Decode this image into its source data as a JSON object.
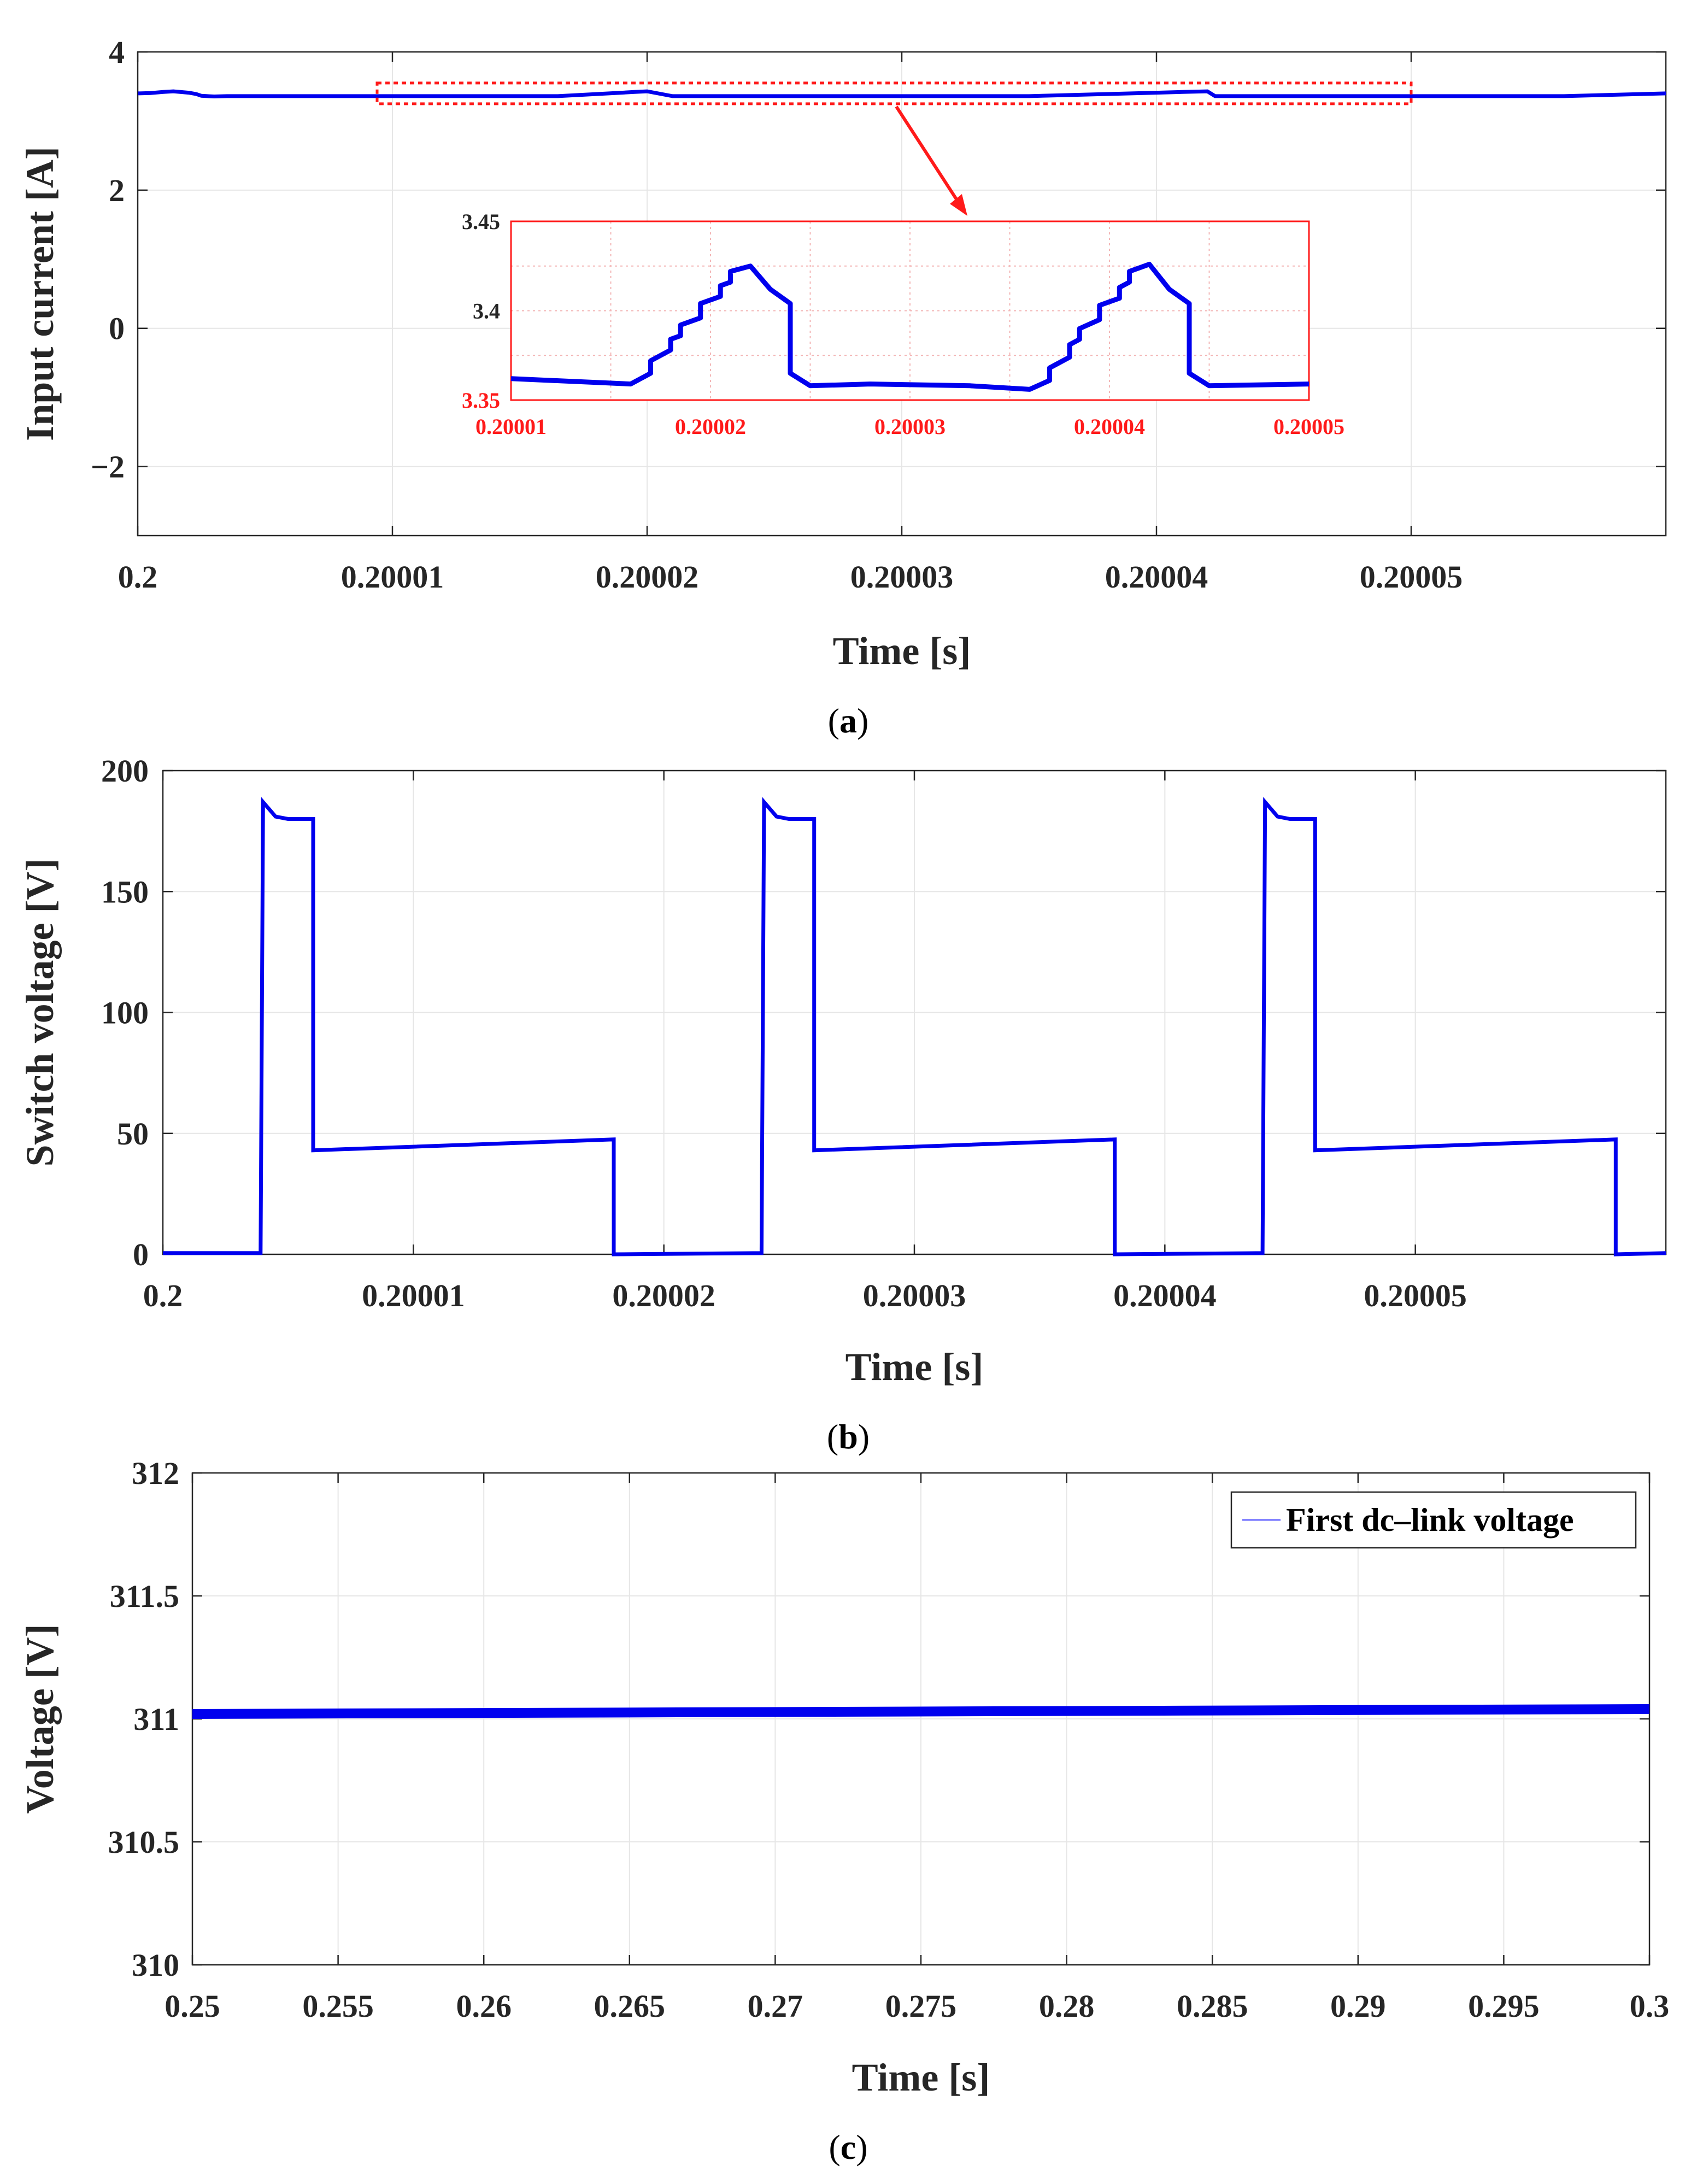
{
  "colors": {
    "series": "#0000ee",
    "grid": "#e6e6e6",
    "axis": "#262626",
    "inset": "#ff1a1a"
  },
  "chart_data": [
    {
      "id": "a",
      "type": "line",
      "caption_letter": "a",
      "xlabel": "Time [s]",
      "ylabel": "Input current [A]",
      "xlim": [
        0.2,
        0.20006
      ],
      "ylim": [
        -3,
        4
      ],
      "x_ticks": [
        0.2,
        0.20001,
        0.20002,
        0.20003,
        0.20004,
        0.20005
      ],
      "x_tick_labels": [
        "0.2",
        "0.20001",
        "0.20002",
        "0.20003",
        "0.20004",
        "0.20005"
      ],
      "y_ticks": [
        -2,
        0,
        2,
        4
      ],
      "y_tick_labels": [
        "−2",
        "0",
        "2",
        "4"
      ],
      "grid": true,
      "series": [
        {
          "name": "Input current",
          "x": [
            0.2,
            0.2000005,
            0.200001,
            0.2000014,
            0.200002,
            0.2000023,
            0.2000025,
            0.200003,
            0.2000035,
            0.200004,
            0.2000045,
            0.200005,
            0.2000055,
            0.200006,
            0.2000065,
            0.200007,
            0.2000075,
            0.200008,
            0.2000085,
            0.200009,
            0.2000095,
            0.20001,
            0.2000105,
            0.200011,
            0.2000115,
            0.200012,
            0.2000125,
            0.200013,
            0.2000135,
            0.200014,
            0.2000145,
            0.200015,
            0.2000155,
            0.200016,
            0.2000165,
            0.200017,
            0.2000175,
            0.200018,
            0.2000185,
            0.200019,
            0.2000195,
            0.20002,
            0.200021,
            0.200022,
            0.2000223,
            0.200023,
            0.200024,
            0.200025,
            0.200026,
            0.200027,
            0.200028,
            0.200029,
            0.20003,
            0.200031,
            0.200032,
            0.200033,
            0.200034,
            0.200035,
            0.200036,
            0.200037,
            0.200038,
            0.200039,
            0.20004,
            0.200041,
            0.200042,
            0.2000423,
            0.200043,
            0.200044,
            0.200045,
            0.200046,
            0.200047,
            0.200048,
            0.200049,
            0.20005,
            0.200051,
            0.200052,
            0.200053,
            0.200054,
            0.200055,
            0.200056,
            0.200057,
            0.200058,
            0.200059,
            0.20006
          ],
          "y": [
            3.4,
            3.405,
            3.42,
            3.43,
            3.41,
            3.39,
            3.365,
            3.355,
            3.36,
            3.36,
            3.36,
            3.36,
            3.36,
            3.36,
            3.36,
            3.36,
            3.36,
            3.36,
            3.36,
            3.36,
            3.36,
            3.36,
            3.36,
            3.36,
            3.36,
            3.36,
            3.36,
            3.36,
            3.36,
            3.36,
            3.36,
            3.36,
            3.36,
            3.36,
            3.36,
            3.37,
            3.38,
            3.39,
            3.4,
            3.41,
            3.42,
            3.43,
            3.36,
            3.36,
            3.36,
            3.36,
            3.36,
            3.36,
            3.36,
            3.36,
            3.36,
            3.36,
            3.36,
            3.36,
            3.36,
            3.36,
            3.36,
            3.36,
            3.37,
            3.38,
            3.39,
            3.4,
            3.41,
            3.42,
            3.43,
            3.36,
            3.36,
            3.36,
            3.36,
            3.36,
            3.36,
            3.36,
            3.36,
            3.36,
            3.36,
            3.36,
            3.36,
            3.36,
            3.36,
            3.36,
            3.37,
            3.38,
            3.39,
            3.4
          ]
        }
      ],
      "inset": {
        "xlim": [
          0.20001,
          0.20005
        ],
        "ylim": [
          3.35,
          3.45
        ],
        "x_ticks": [
          0.20001,
          0.20002,
          0.20003,
          0.20004,
          0.20005
        ],
        "x_tick_labels": [
          "0.20001",
          "0.20002",
          "0.20003",
          "0.20004",
          "0.20005"
        ],
        "y_ticks": [
          3.35,
          3.4,
          3.45
        ],
        "y_tick_labels": [
          "3.35",
          "3.4",
          "3.45"
        ],
        "x": [
          0.20001,
          0.200016,
          0.200017,
          0.200017,
          0.200018,
          0.200018,
          0.2000185,
          0.2000185,
          0.2000195,
          0.2000195,
          0.2000205,
          0.2000205,
          0.200021,
          0.200021,
          0.200022,
          0.200023,
          0.200024,
          0.200024,
          0.200025,
          0.200028,
          0.200033,
          0.200036,
          0.200037,
          0.200037,
          0.200038,
          0.200038,
          0.2000385,
          0.2000385,
          0.2000395,
          0.2000395,
          0.2000405,
          0.2000405,
          0.200041,
          0.200041,
          0.200042,
          0.200043,
          0.200044,
          0.200044,
          0.200045,
          0.20005
        ],
        "y": [
          3.362,
          3.359,
          3.365,
          3.372,
          3.378,
          3.384,
          3.386,
          3.392,
          3.396,
          3.404,
          3.408,
          3.414,
          3.416,
          3.422,
          3.425,
          3.412,
          3.404,
          3.365,
          3.358,
          3.359,
          3.358,
          3.356,
          3.361,
          3.368,
          3.374,
          3.381,
          3.384,
          3.39,
          3.395,
          3.403,
          3.407,
          3.413,
          3.416,
          3.422,
          3.426,
          3.412,
          3.404,
          3.365,
          3.358,
          3.359
        ]
      }
    },
    {
      "id": "b",
      "type": "line",
      "caption_letter": "b",
      "xlabel": "Time [s]",
      "ylabel": "Switch voltage [V]",
      "xlim": [
        0.2,
        0.20006
      ],
      "ylim": [
        0,
        200
      ],
      "x_ticks": [
        0.2,
        0.20001,
        0.20002,
        0.20003,
        0.20004,
        0.20005
      ],
      "x_tick_labels": [
        "0.2",
        "0.20001",
        "0.20002",
        "0.20003",
        "0.20004",
        "0.20005"
      ],
      "y_ticks": [
        0,
        50,
        100,
        150,
        200
      ],
      "y_tick_labels": [
        "0",
        "50",
        "100",
        "150",
        "200"
      ],
      "grid": true,
      "series": [
        {
          "name": "Switch voltage",
          "x": [
            0.2,
            0.2000039,
            0.200004,
            0.2000045,
            0.200005,
            0.200006,
            0.200006,
            0.200018,
            0.200018,
            0.2000239,
            0.200024,
            0.2000245,
            0.200025,
            0.200026,
            0.200026,
            0.200038,
            0.200038,
            0.2000439,
            0.200044,
            0.2000445,
            0.200045,
            0.200046,
            0.200046,
            0.200058,
            0.200058,
            0.20006
          ],
          "y": [
            0.5,
            0.5,
            187,
            181,
            180,
            180,
            43,
            47.5,
            0,
            0.5,
            187,
            181,
            180,
            180,
            43,
            47.5,
            0,
            0.5,
            187,
            181,
            180,
            180,
            43,
            47.5,
            0,
            0.5
          ]
        }
      ]
    },
    {
      "id": "c",
      "type": "line",
      "caption_letter": "c",
      "xlabel": "Time [s]",
      "ylabel": "Voltage [V]",
      "xlim": [
        0.25,
        0.3
      ],
      "ylim": [
        310,
        312
      ],
      "x_ticks": [
        0.25,
        0.255,
        0.26,
        0.265,
        0.27,
        0.275,
        0.28,
        0.285,
        0.29,
        0.295,
        0.3
      ],
      "x_tick_labels": [
        "0.25",
        "0.255",
        "0.26",
        "0.265",
        "0.27",
        "0.275",
        "0.28",
        "0.285",
        "0.29",
        "0.295",
        "0.3"
      ],
      "y_ticks": [
        310,
        310.5,
        311,
        311.5,
        312
      ],
      "y_tick_labels": [
        "310",
        "310.5",
        "311",
        "311.5",
        "312"
      ],
      "grid": true,
      "legend": {
        "label": "First dc–link voltage",
        "placement": "top-right"
      },
      "series": [
        {
          "name": "First dc–link voltage",
          "x": [
            0.25,
            0.3
          ],
          "y_low": [
            311.0,
            311.02
          ],
          "y_high": [
            311.04,
            311.06
          ]
        }
      ]
    }
  ]
}
